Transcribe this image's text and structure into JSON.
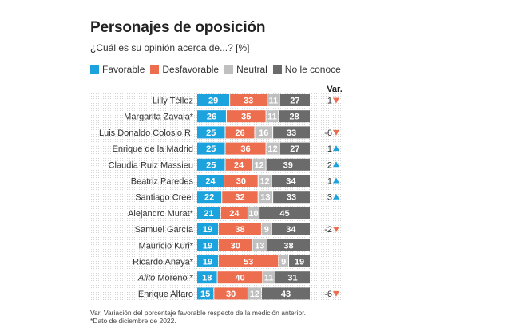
{
  "title": "Personajes de oposición",
  "subtitle": "¿Cuál es su opinión acerca de...? [%]",
  "var_header": "Var.",
  "colors": {
    "favorable": "#1ca3de",
    "desfavorable": "#ec6e4f",
    "neutral": "#bfbfbf",
    "no_le_conoce": "#6b6b6b",
    "up": "#1ca3de",
    "down": "#ec6e4f"
  },
  "legend": [
    {
      "key": "favorable",
      "label": "Favorable"
    },
    {
      "key": "desfavorable",
      "label": "Desfavorable"
    },
    {
      "key": "neutral",
      "label": "Neutral"
    },
    {
      "key": "no_le_conoce",
      "label": "No le conoce"
    }
  ],
  "chart_data": {
    "type": "bar",
    "stacked": true,
    "orientation": "horizontal",
    "categories": [
      "Lilly Téllez",
      "Margarita Zavala*",
      "Luis Donaldo Colosio R.",
      "Enrique de la Madrid",
      "Claudia Ruiz Massieu",
      "Beatriz Paredes",
      "Santiago Creel",
      "Alejandro Murat*",
      "Samuel García",
      "Mauricio Kuri*",
      "Ricardo Anaya*",
      "Alito Moreno *",
      "Enrique Alfaro"
    ],
    "series": [
      {
        "name": "Favorable",
        "values": [
          29,
          26,
          25,
          25,
          25,
          24,
          22,
          21,
          19,
          19,
          19,
          18,
          15
        ]
      },
      {
        "name": "Desfavorable",
        "values": [
          33,
          35,
          26,
          36,
          24,
          30,
          32,
          24,
          38,
          30,
          53,
          40,
          30
        ]
      },
      {
        "name": "Neutral",
        "values": [
          11,
          11,
          16,
          12,
          12,
          12,
          13,
          10,
          9,
          13,
          9,
          11,
          12
        ]
      },
      {
        "name": "No le conoce",
        "values": [
          27,
          28,
          33,
          27,
          39,
          34,
          33,
          45,
          34,
          38,
          19,
          31,
          43
        ]
      }
    ],
    "var": [
      {
        "value": "-1",
        "dir": "down"
      },
      {
        "value": "",
        "dir": ""
      },
      {
        "value": "-6",
        "dir": "down"
      },
      {
        "value": "1",
        "dir": "up"
      },
      {
        "value": "2",
        "dir": "up"
      },
      {
        "value": "1",
        "dir": "up"
      },
      {
        "value": "3",
        "dir": "up"
      },
      {
        "value": "",
        "dir": ""
      },
      {
        "value": "-2",
        "dir": "down"
      },
      {
        "value": "",
        "dir": ""
      },
      {
        "value": "",
        "dir": ""
      },
      {
        "value": "",
        "dir": ""
      },
      {
        "value": "-6",
        "dir": "down"
      }
    ],
    "xlim": [
      0,
      100
    ]
  },
  "footnotes": [
    "Var. Variación del porcentaje favorable respecto de la medición anterior.",
    "*Dato de diciembre de 2022."
  ]
}
